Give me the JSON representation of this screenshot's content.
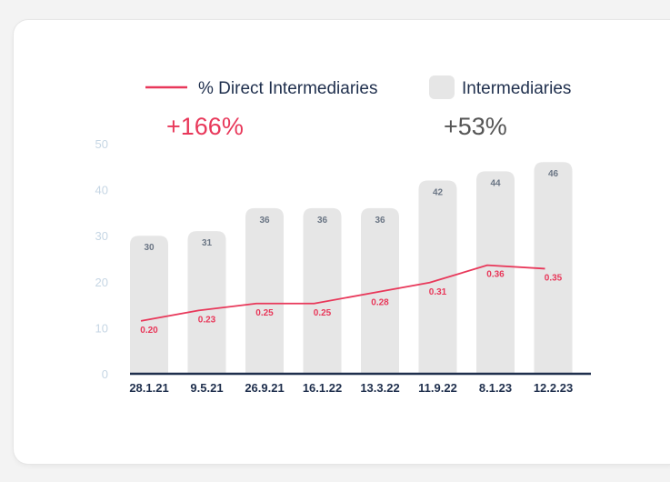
{
  "legend": {
    "line_label": "% Direct Intermediaries",
    "bar_label": "Intermediaries"
  },
  "callouts": {
    "line_change": "+166%",
    "bar_change": "+53%"
  },
  "colors": {
    "line": "#e8385a",
    "bar": "#e6e6e6",
    "bar_value_text": "#6b7685",
    "y_tick_text": "#c6d6e4",
    "axis": "#1f2f4d",
    "callout_bar": "#555555",
    "card_bg": "#ffffff",
    "page_bg": "#f3f3f3"
  },
  "chart_data": {
    "type": "bar",
    "categories": [
      "28.1.21",
      "9.5.21",
      "26.9.21",
      "16.1.22",
      "13.3.22",
      "11.9.22",
      "8.1.23",
      "12.2.23"
    ],
    "ylim": [
      0,
      50
    ],
    "yticks": [
      0,
      10,
      20,
      30,
      40,
      50
    ],
    "series": [
      {
        "name": "Intermediaries",
        "type": "bar",
        "values": [
          30,
          31,
          36,
          36,
          36,
          42,
          44,
          46
        ],
        "labels": [
          "30",
          "31",
          "36",
          "36",
          "36",
          "42",
          "44",
          "46"
        ]
      },
      {
        "name": "% Direct Intermediaries",
        "type": "line",
        "values": [
          0.2,
          0.23,
          0.25,
          0.25,
          0.28,
          0.31,
          0.36,
          0.35
        ],
        "labels": [
          "0.20",
          "0.23",
          "0.25",
          "0.25",
          "0.28",
          "0.31",
          "0.36",
          "0.35"
        ]
      }
    ]
  }
}
